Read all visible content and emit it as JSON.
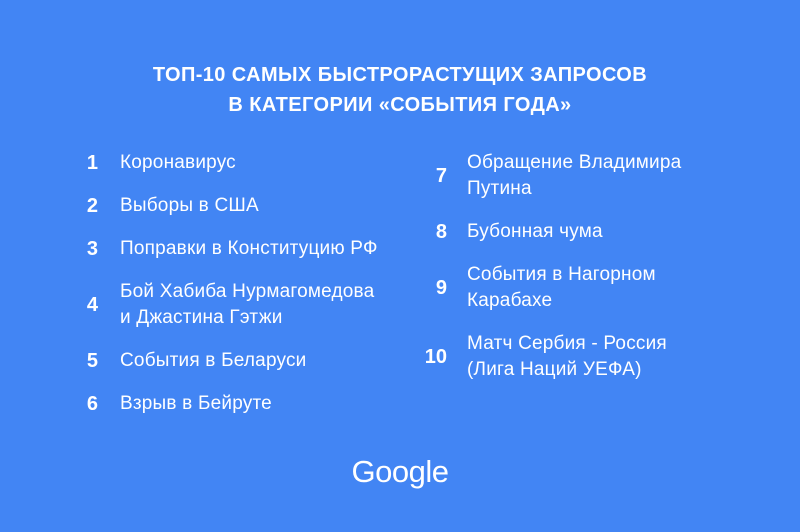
{
  "page": {
    "background_color": "#4285F4",
    "text_color": "#FFFFFF"
  },
  "title": {
    "line1": "ТОП-10 САМЫХ БЫСТРОРАСТУЩИХ ЗАПРОСОВ",
    "line2": "В КАТЕГОРИИ «СОБЫТИЯ ГОДА»"
  },
  "list": {
    "left": [
      {
        "rank": "1",
        "label": "Коронавирус"
      },
      {
        "rank": "2",
        "label": "Выборы в США"
      },
      {
        "rank": "3",
        "label": "Поправки в Конституцию РФ"
      },
      {
        "rank": "4",
        "label": "Бой Хабиба Нурмагомедова\nи Джастина Гэтжи"
      },
      {
        "rank": "5",
        "label": "События в Беларуси"
      },
      {
        "rank": "6",
        "label": "Взрыв в Бейруте"
      }
    ],
    "right": [
      {
        "rank": "7",
        "label": "Обращение Владимира\nПутина"
      },
      {
        "rank": "8",
        "label": "Бубонная чума"
      },
      {
        "rank": "9",
        "label": "События в Нагорном\nКарабахе"
      },
      {
        "rank": "10",
        "label": "Матч Сербия - Россия\n(Лига Наций УЕФА)"
      }
    ]
  },
  "footer": {
    "logo_text": "Google"
  }
}
